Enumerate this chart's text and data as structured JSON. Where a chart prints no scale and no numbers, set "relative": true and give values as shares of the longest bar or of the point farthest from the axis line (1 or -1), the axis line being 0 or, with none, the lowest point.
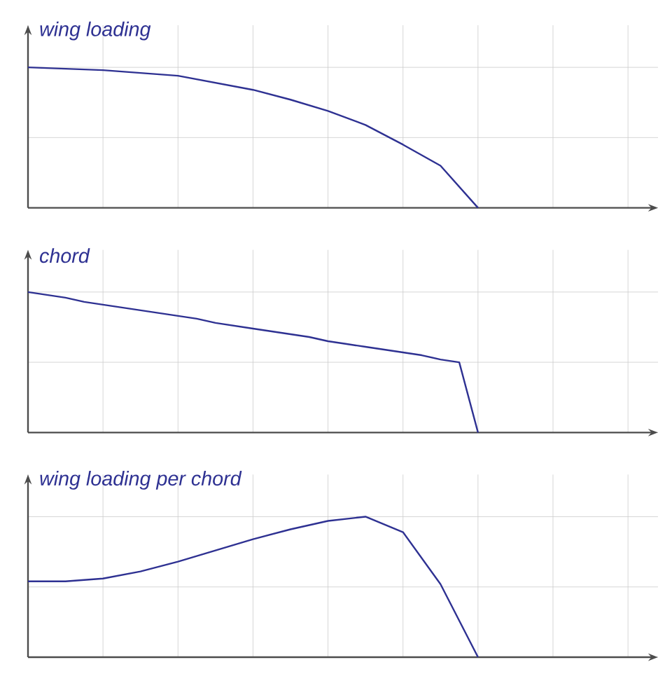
{
  "chart_data": [
    {
      "type": "line",
      "title": "wing loading",
      "relative": true,
      "grid": true,
      "color": "#2e3192",
      "categories": [
        null,
        null,
        null,
        null,
        null,
        null,
        null,
        null,
        null,
        null,
        null,
        null,
        null
      ],
      "values": [
        1,
        0.99,
        0.98,
        0.96,
        0.94,
        0.89,
        0.84,
        0.77,
        0.69,
        0.59,
        0.45,
        0.3,
        0
      ]
    },
    {
      "type": "line",
      "title": "chord",
      "relative": true,
      "grid": true,
      "color": "#2e3192",
      "categories": [
        null,
        null,
        null,
        null,
        null,
        null,
        null,
        null,
        null,
        null,
        null,
        null,
        null,
        null,
        null,
        null,
        null,
        null,
        null,
        null,
        null,
        null,
        null,
        null,
        null
      ],
      "values": [
        1,
        0.98,
        0.96,
        0.93,
        0.91,
        0.89,
        0.87,
        0.85,
        0.83,
        0.81,
        0.78,
        0.76,
        0.74,
        0.72,
        0.7,
        0.68,
        0.65,
        0.63,
        0.61,
        0.59,
        0.57,
        0.55,
        0.52,
        0.5,
        0
      ]
    },
    {
      "type": "line",
      "title": "wing loading per chord",
      "relative": true,
      "grid": true,
      "color": "#2e3192",
      "categories": [
        null,
        null,
        null,
        null,
        null,
        null,
        null,
        null,
        null,
        null,
        null,
        null,
        null
      ],
      "values": [
        0.54,
        0.54,
        0.56,
        0.61,
        0.68,
        0.76,
        0.84,
        0.91,
        0.97,
        1,
        0.89,
        0.52,
        0
      ]
    }
  ]
}
